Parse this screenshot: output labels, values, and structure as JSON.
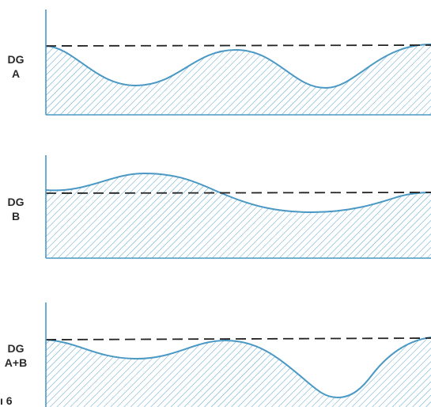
{
  "panels": [
    {
      "id": "A",
      "line1": "DG",
      "line2": "A"
    },
    {
      "id": "B",
      "line1": "DG",
      "line2": "B"
    },
    {
      "id": "AB",
      "line1": "DG",
      "line2": "A+B"
    }
  ],
  "corner_text": "ı 6",
  "colors": {
    "curve": "#4a98c4",
    "hatch": "#5aa3cc",
    "axis": "#4a98c4",
    "dashed": "#222222"
  }
}
